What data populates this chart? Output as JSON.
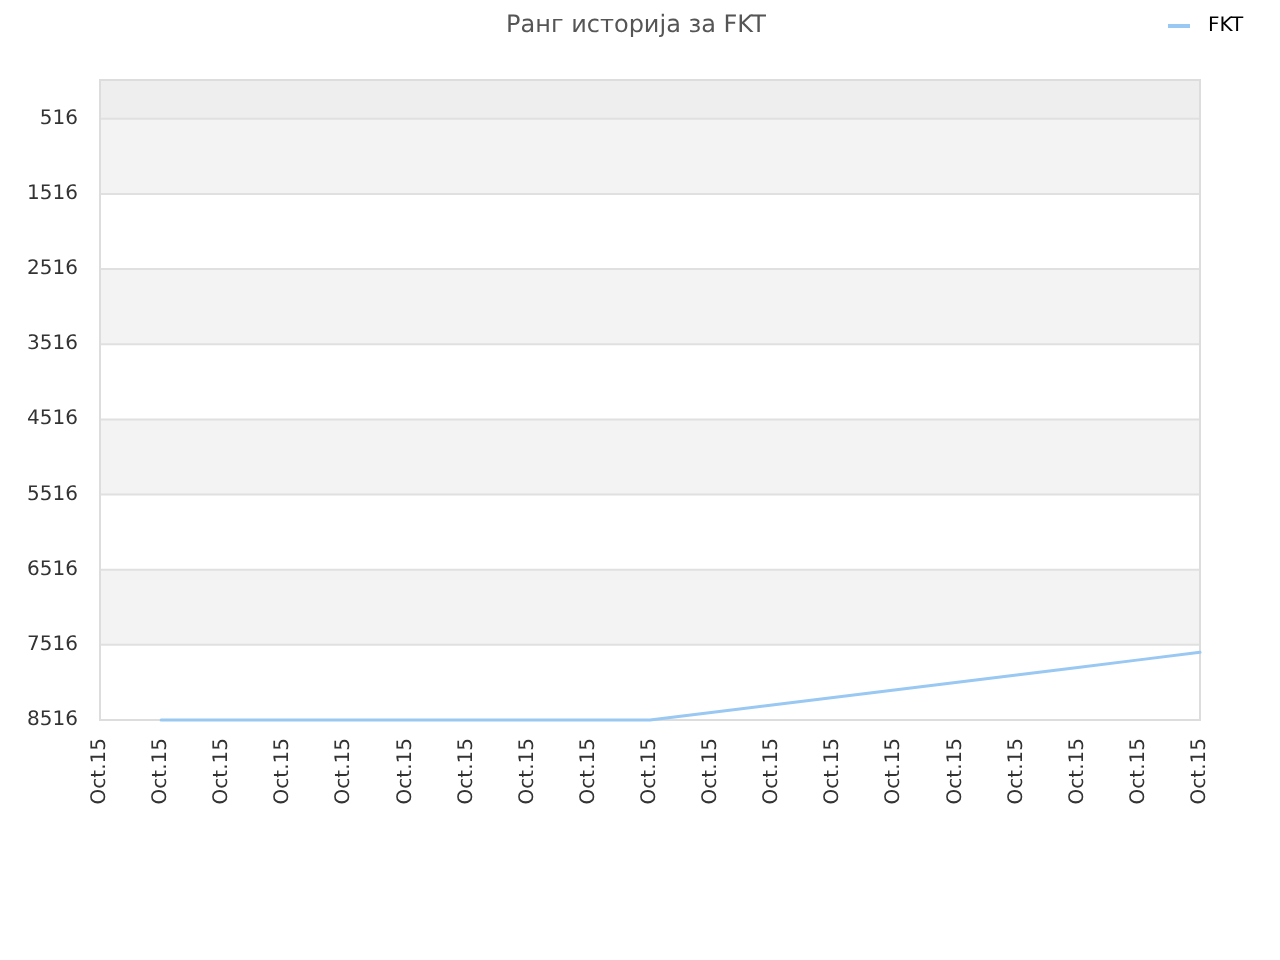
{
  "chart_data": {
    "type": "line",
    "title": "Ранг историја за FKT",
    "categories": [
      "Oct.15",
      "Oct.15",
      "Oct.15",
      "Oct.15",
      "Oct.15",
      "Oct.15",
      "Oct.15",
      "Oct.15",
      "Oct.15",
      "Oct.15",
      "Oct.15",
      "Oct.15",
      "Oct.15",
      "Oct.15",
      "Oct.15",
      "Oct.15",
      "Oct.15",
      "Oct.15",
      "Oct.15"
    ],
    "series": [
      {
        "name": "FKT",
        "color": "#99c8f2",
        "values": [
          null,
          8516,
          8516,
          8516,
          8516,
          8516,
          8516,
          8516,
          8516,
          8516,
          8416,
          8316,
          8216,
          8116,
          8016,
          7916,
          7816,
          7716,
          7616
        ]
      }
    ],
    "ylim": [
      8516,
      0
    ],
    "yticks": [
      516,
      1516,
      2516,
      3516,
      4516,
      5516,
      6516,
      7516,
      8516
    ],
    "grid": "y",
    "legend": "top right"
  }
}
